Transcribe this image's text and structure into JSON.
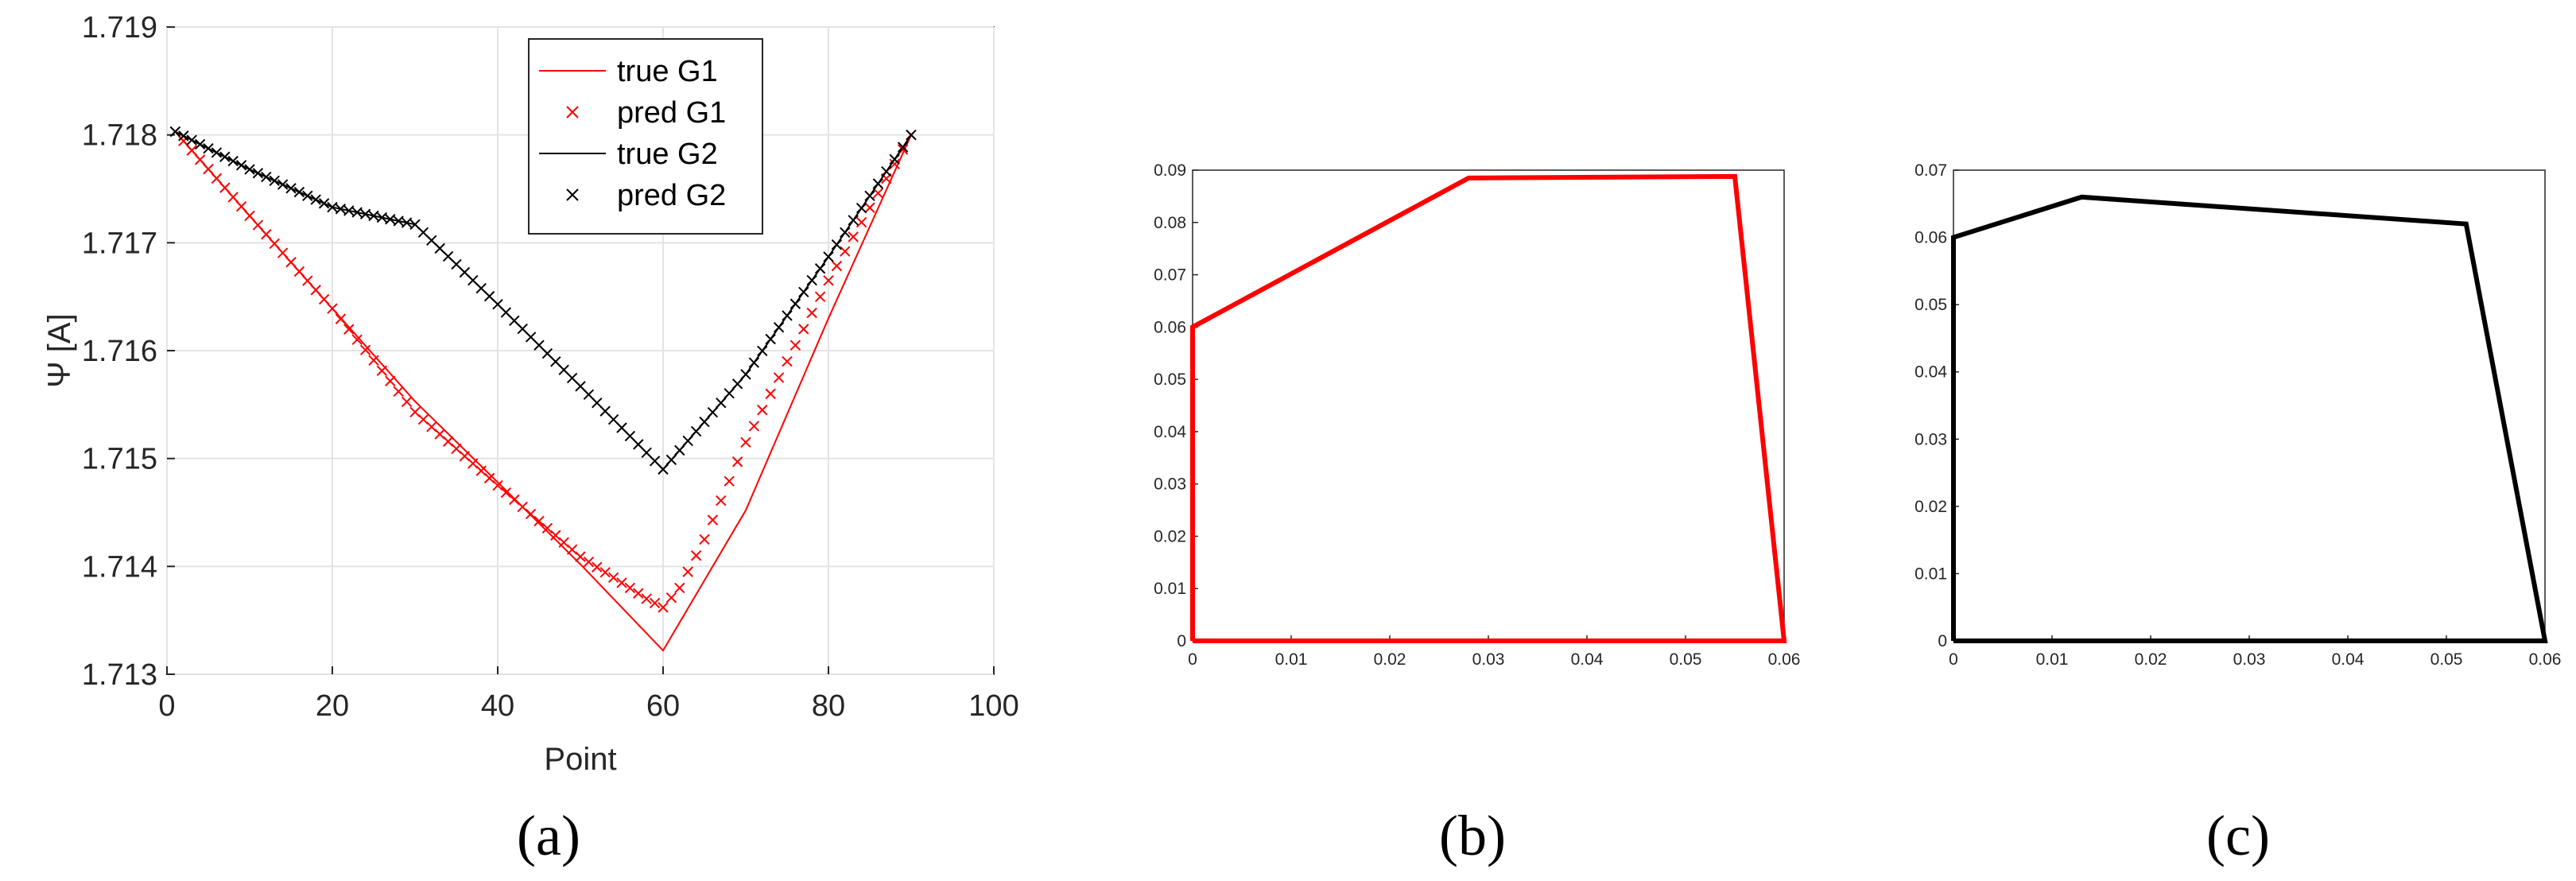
{
  "chart_data": [
    {
      "type": "line",
      "panel_label": "(a)",
      "xlabel": "Point",
      "ylabel": "Ψ [A]",
      "xlim": [
        0,
        100
      ],
      "ylim": [
        1.713,
        1.719
      ],
      "xticks": [
        0,
        20,
        40,
        60,
        80,
        100
      ],
      "yticks": [
        "1.713",
        "1.714",
        "1.715",
        "1.716",
        "1.717",
        "1.718",
        "1.719"
      ],
      "grid": true,
      "legend_position": "top-center",
      "legend": [
        "true G1",
        "pred G1",
        "true G2",
        "pred G2"
      ],
      "series": [
        {
          "name": "true G1",
          "style": "line",
          "color": "#ff0000",
          "x": [
            1,
            10,
            20,
            30,
            40,
            50,
            60,
            70,
            80,
            90
          ],
          "y": [
            1.71803,
            1.71725,
            1.71639,
            1.71553,
            1.71478,
            1.71402,
            1.71322,
            1.71452,
            1.7163,
            1.718
          ]
        },
        {
          "name": "pred G1",
          "style": "x",
          "color": "#ff0000",
          "x": [
            1,
            10,
            20,
            30,
            40,
            50,
            56,
            58,
            60,
            62,
            65,
            70,
            80,
            90
          ],
          "y": [
            1.71803,
            1.71725,
            1.71639,
            1.71543,
            1.71475,
            1.71409,
            1.7138,
            1.7137,
            1.71362,
            1.7138,
            1.71425,
            1.71515,
            1.71665,
            1.718
          ]
        },
        {
          "name": "true G2",
          "style": "line",
          "color": "#000000",
          "x": [
            1,
            10,
            20,
            30,
            40,
            50,
            60,
            70,
            80,
            90
          ],
          "y": [
            1.71803,
            1.71768,
            1.71733,
            1.71717,
            1.71643,
            1.71567,
            1.7149,
            1.71578,
            1.71687,
            1.718
          ]
        },
        {
          "name": "pred G2",
          "style": "x",
          "color": "#000000",
          "x": [
            1,
            10,
            20,
            30,
            40,
            50,
            60,
            70,
            80,
            90
          ],
          "y": [
            1.71803,
            1.71768,
            1.71733,
            1.71717,
            1.71643,
            1.71567,
            1.7149,
            1.71578,
            1.71687,
            1.718
          ]
        }
      ]
    },
    {
      "type": "line",
      "panel_label": "(b)",
      "xlim": [
        0,
        0.06
      ],
      "ylim": [
        0,
        0.09
      ],
      "xticks": [
        "0",
        "0.01",
        "0.02",
        "0.03",
        "0.04",
        "0.05",
        "0.06"
      ],
      "yticks": [
        "0",
        "0.01",
        "0.02",
        "0.03",
        "0.04",
        "0.05",
        "0.06",
        "0.07",
        "0.08",
        "0.09"
      ],
      "grid": false,
      "series": [
        {
          "color": "#ff0000",
          "x": [
            0,
            0,
            0.028,
            0.055,
            0.06,
            0
          ],
          "y": [
            0,
            0.06,
            0.0885,
            0.0888,
            0,
            0
          ]
        }
      ]
    },
    {
      "type": "line",
      "panel_label": "(c)",
      "xlim": [
        0,
        0.06
      ],
      "ylim": [
        0,
        0.07
      ],
      "xticks": [
        "0",
        "0.01",
        "0.02",
        "0.03",
        "0.04",
        "0.05",
        "0.06"
      ],
      "yticks": [
        "0",
        "0.01",
        "0.02",
        "0.03",
        "0.04",
        "0.05",
        "0.06",
        "0.07"
      ],
      "grid": false,
      "series": [
        {
          "color": "#000000",
          "x": [
            0,
            0,
            0.013,
            0.052,
            0.06,
            0
          ],
          "y": [
            0,
            0.06,
            0.066,
            0.062,
            0,
            0
          ]
        }
      ]
    }
  ]
}
